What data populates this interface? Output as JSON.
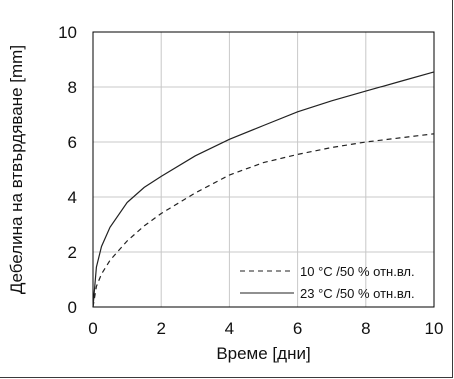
{
  "chart_data": {
    "type": "line",
    "xlabel": "Време [дни]",
    "ylabel": "Дебелина на втвърдяване [mm]",
    "xlim": [
      0,
      10
    ],
    "ylim": [
      0,
      10
    ],
    "x_ticks": [
      0,
      2,
      4,
      6,
      8,
      10
    ],
    "y_ticks": [
      0,
      2,
      4,
      6,
      8,
      10
    ],
    "grid": true,
    "legend_position": "bottom-right",
    "series": [
      {
        "name": "10 °C /50 % отн.вл.",
        "style": "dashed",
        "color": "#222222",
        "x": [
          0,
          0.1,
          0.25,
          0.5,
          1,
          1.5,
          2,
          3,
          4,
          5,
          6,
          7,
          8,
          9,
          10
        ],
        "y": [
          0,
          0.75,
          1.2,
          1.7,
          2.4,
          2.95,
          3.4,
          4.15,
          4.8,
          5.25,
          5.55,
          5.8,
          6.0,
          6.15,
          6.3
        ]
      },
      {
        "name": "23 °C /50 % отн.вл.",
        "style": "solid",
        "color": "#222222",
        "x": [
          0,
          0.1,
          0.25,
          0.5,
          1,
          1.5,
          2,
          3,
          4,
          5,
          6,
          7,
          8,
          9,
          10
        ],
        "y": [
          0,
          1.45,
          2.2,
          2.9,
          3.8,
          4.35,
          4.75,
          5.5,
          6.1,
          6.6,
          7.1,
          7.5,
          7.85,
          8.2,
          8.55
        ]
      }
    ]
  }
}
